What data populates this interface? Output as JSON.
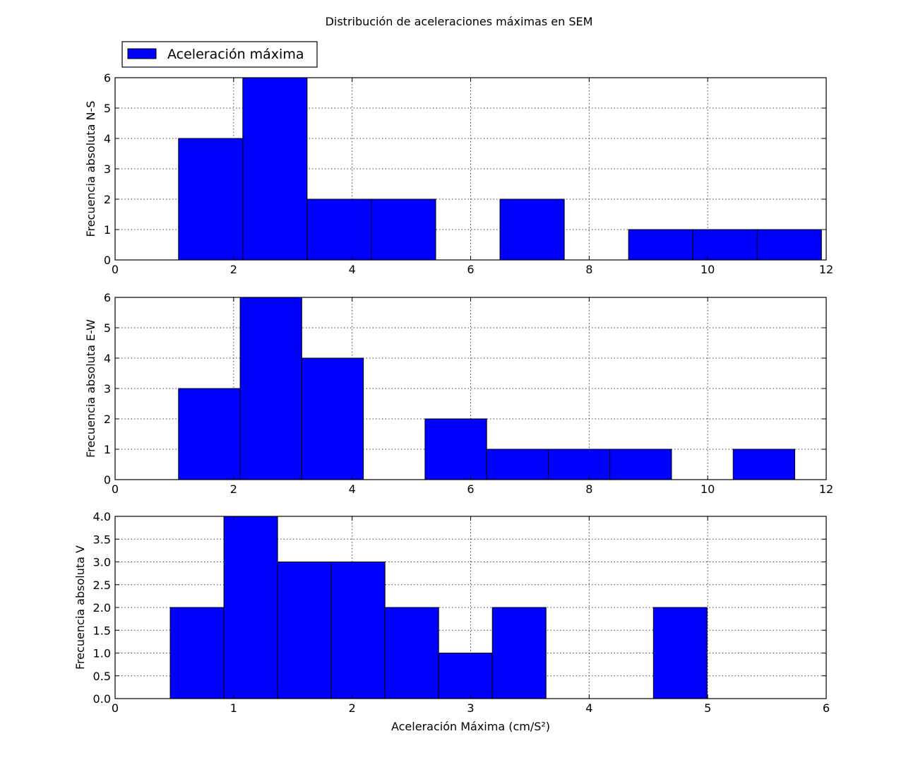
{
  "figure": {
    "title": "Distribución de aceleraciones máximas en SEM"
  },
  "legend": {
    "label": "Aceleración máxima",
    "placement": "upper-left, above first subplot",
    "color": "#0000ff"
  },
  "chart_data": [
    {
      "type": "bar",
      "subtype": "histogram",
      "ylabel": "Frecuencia absoluta N-S",
      "xlabel": "",
      "xlim": [
        0,
        12
      ],
      "ylim": [
        0,
        6
      ],
      "xticks": [
        "0",
        "2",
        "4",
        "6",
        "8",
        "10",
        "12"
      ],
      "yticks": [
        "0",
        "1",
        "2",
        "3",
        "4",
        "5",
        "6"
      ],
      "grid": true,
      "color": "#0000ff",
      "bin_edges": [
        1.07,
        2.155,
        3.24,
        4.325,
        5.41,
        6.495,
        7.58,
        8.665,
        9.75,
        10.835,
        11.92
      ],
      "values": [
        4,
        6,
        2,
        2,
        0,
        2,
        0,
        1,
        1,
        1
      ]
    },
    {
      "type": "bar",
      "subtype": "histogram",
      "ylabel": "Frecuencia absoluta E-W",
      "xlabel": "",
      "xlim": [
        0,
        12
      ],
      "ylim": [
        0,
        6
      ],
      "xticks": [
        "0",
        "2",
        "4",
        "6",
        "8",
        "10",
        "12"
      ],
      "yticks": [
        "0",
        "1",
        "2",
        "3",
        "4",
        "5",
        "6"
      ],
      "grid": true,
      "color": "#0000ff",
      "bin_edges": [
        1.07,
        2.11,
        3.15,
        4.19,
        5.23,
        6.27,
        7.31,
        8.35,
        9.39,
        10.43,
        11.47
      ],
      "values": [
        3,
        6,
        4,
        0,
        2,
        1,
        1,
        1,
        0,
        1
      ]
    },
    {
      "type": "bar",
      "subtype": "histogram",
      "ylabel": "Frecuencia absoluta V",
      "xlabel": "Aceleración Máxima (cm/S²)",
      "xlim": [
        0,
        6
      ],
      "ylim": [
        0,
        4
      ],
      "xticks": [
        "0",
        "1",
        "2",
        "3",
        "4",
        "5",
        "6"
      ],
      "yticks": [
        "0.0",
        "0.5",
        "1.0",
        "1.5",
        "2.0",
        "2.5",
        "3.0",
        "3.5",
        "4.0"
      ],
      "grid": true,
      "color": "#0000ff",
      "bin_edges": [
        0.465,
        0.918,
        1.371,
        1.824,
        2.277,
        2.73,
        3.183,
        3.636,
        4.089,
        4.542,
        4.995
      ],
      "values": [
        2,
        4,
        3,
        3,
        2,
        1,
        2,
        0,
        0,
        2
      ]
    }
  ]
}
